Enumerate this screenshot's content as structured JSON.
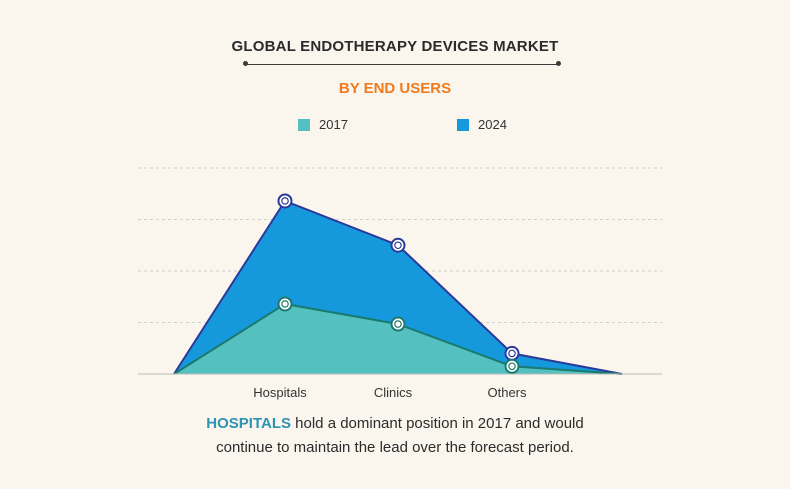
{
  "colors": {
    "series_2017": "#55c0c0",
    "series_2024": "#1699dc",
    "line_2017": "#1a7a6e",
    "line_2024": "#2b3a9a",
    "grid": "#cfcfcf",
    "highlight": "#2d93b5",
    "subtitle": "#f07a1c"
  },
  "chart_data": {
    "type": "area",
    "title": "GLOBAL ENDOTHERAPY DEVICES MARKET",
    "subtitle": "BY END USERS",
    "categories": [
      "Hospitals",
      "Clinics",
      "Others"
    ],
    "series": [
      {
        "name": "2017",
        "values": [
          1.36,
          0.97,
          0.15
        ]
      },
      {
        "name": "2024",
        "values": [
          3.36,
          2.5,
          0.4
        ]
      }
    ],
    "ylim": [
      0,
      4
    ],
    "grid": true,
    "legend_position": "top-center",
    "xlabel": "",
    "ylabel": ""
  },
  "caption": {
    "highlight": "HOSPITALS",
    "text_line1": " hold a dominant position in 2017 and would",
    "text_line2": "continue to maintain the lead over the forecast period."
  }
}
